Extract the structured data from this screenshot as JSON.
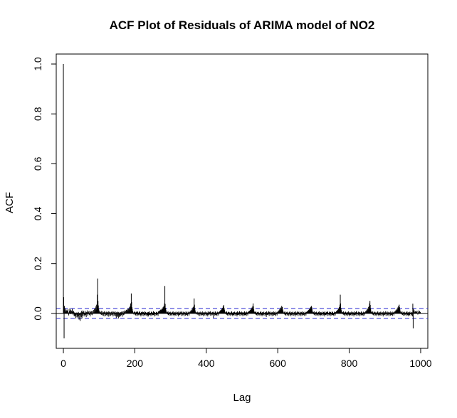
{
  "chart_data": {
    "type": "bar",
    "title": "ACF Plot of Residuals of ARIMA model of NO2",
    "xlabel": "Lag",
    "ylabel": "ACF",
    "xlim": [
      -20,
      1020
    ],
    "ylim": [
      -0.14,
      1.04
    ],
    "xticks": [
      0,
      200,
      400,
      600,
      800,
      1000
    ],
    "yticks": [
      0.0,
      0.2,
      0.4,
      0.6,
      0.8,
      1.0
    ],
    "xtick_labels": [
      "0",
      "200",
      "400",
      "600",
      "800",
      "1000"
    ],
    "ytick_labels": [
      "0.0",
      "0.2",
      "0.4",
      "0.6",
      "0.8",
      "1.0"
    ],
    "confidence_bound": 0.02,
    "max_lag": 1000,
    "series": [
      {
        "values": [
          1.0,
          0.065,
          -0.1,
          0.03,
          0.012,
          0.02,
          0.008,
          0.004,
          0.015,
          0.01,
          0.003,
          0.012,
          0.006,
          0.018,
          0.002,
          -0.008,
          0.005,
          0.01,
          0.02,
          0.004,
          0.015,
          -0.003,
          0.01,
          0.002,
          0.012,
          0.018,
          0.008,
          -0.005,
          0.006,
          0.01,
          -0.01,
          0.004,
          -0.012,
          0.002,
          -0.008,
          -0.02,
          0.004,
          -0.005,
          -0.015,
          0.003,
          -0.01,
          -0.018,
          0.006,
          -0.012,
          -0.025,
          -0.006,
          0.002,
          -0.03,
          -0.008,
          0.004,
          -0.015,
          0.01,
          -0.02,
          0.006,
          -0.01,
          0.012,
          -0.004,
          0.008,
          -0.012,
          0.003,
          -0.006,
          0.01,
          -0.008,
          0.004,
          -0.015,
          0.006,
          -0.003,
          0.012,
          -0.009,
          0.005,
          -0.004,
          0.008,
          0.002,
          -0.006,
          0.01,
          -0.012,
          0.004,
          0.007,
          -0.005,
          0.009,
          0.003,
          -0.007,
          0.011,
          0.006,
          0.002,
          0.014,
          0.004,
          0.018,
          0.006,
          0.02,
          0.012,
          0.028,
          0.015,
          0.035,
          0.03,
          0.075,
          0.14,
          0.05,
          0.032,
          0.02,
          0.012,
          0.008,
          0.004,
          -0.002,
          0.006,
          -0.004,
          0.01,
          -0.006,
          0.004,
          0.008,
          -0.008,
          0.003,
          -0.01,
          0.006,
          -0.003,
          0.009,
          -0.012,
          0.005,
          0.002,
          -0.009,
          0.007,
          -0.006,
          0.004,
          -0.011,
          0.006,
          -0.004,
          0.008,
          -0.013,
          0.003,
          0.007,
          -0.008,
          0.005,
          -0.01,
          0.002,
          0.006,
          -0.007,
          0.009,
          -0.005,
          0.004,
          -0.012,
          0.007,
          0.002,
          -0.009,
          0.006,
          -0.004,
          0.008,
          -0.011,
          0.003,
          -0.018,
          0.005,
          -0.01,
          0.007,
          -0.014,
          0.004,
          -0.02,
          0.006,
          -0.008,
          -0.015,
          0.003,
          -0.012,
          0.005,
          -0.009,
          0.007,
          -0.006,
          0.004,
          -0.013,
          0.008,
          0.002,
          -0.007,
          0.009,
          -0.005,
          0.006,
          0.012,
          0.004,
          0.01,
          0.002,
          0.014,
          0.008,
          0.016,
          0.005,
          0.012,
          0.02,
          0.009,
          0.018,
          0.012,
          0.025,
          0.015,
          0.03,
          0.04,
          0.028,
          0.08,
          0.045,
          0.025,
          0.018,
          0.01,
          0.006,
          0.002,
          -0.004,
          0.006,
          -0.002,
          0.008,
          -0.006,
          0.004,
          -0.009,
          0.007,
          -0.003,
          0.005,
          -0.01,
          0.008,
          -0.005,
          0.003,
          -0.008,
          0.006,
          -0.004,
          0.009,
          -0.007,
          0.002,
          -0.012,
          0.006,
          -0.005,
          0.004,
          -0.009,
          0.007,
          -0.003,
          0.005,
          -0.011,
          0.008,
          -0.006,
          0.003,
          -0.008,
          0.006,
          -0.004,
          0.002,
          -0.01,
          0.005,
          -0.007,
          0.004,
          -0.013,
          0.006,
          -0.009,
          0.003,
          -0.006,
          0.008,
          -0.005,
          0.002,
          -0.011,
          0.007,
          -0.004,
          0.005,
          -0.008,
          0.003,
          -0.006,
          0.009,
          -0.007,
          0.004,
          -0.012,
          0.006,
          -0.003,
          0.002,
          -0.009,
          0.005,
          -0.006,
          0.007,
          -0.004,
          0.003,
          -0.01,
          0.008,
          0.004,
          0.01,
          0.006,
          0.012,
          0.008,
          0.015,
          0.01,
          0.014,
          0.018,
          0.012,
          0.02,
          0.016,
          0.025,
          0.018,
          0.03,
          0.022,
          0.04,
          0.11,
          0.038,
          0.022,
          0.015,
          0.008,
          0.004,
          -0.002,
          0.006,
          -0.004,
          0.008,
          -0.006,
          0.003,
          -0.009,
          0.005,
          -0.003,
          0.007,
          -0.008,
          0.004,
          -0.005,
          0.002,
          -0.01,
          0.006,
          -0.004,
          0.008,
          -0.007,
          0.003,
          -0.011,
          0.005,
          -0.006,
          0.004,
          -0.008,
          0.007,
          -0.003,
          0.002,
          -0.009,
          0.006,
          -0.005,
          0.004,
          -0.012,
          0.008,
          -0.006,
          0.003,
          -0.007,
          0.005,
          -0.004,
          0.009,
          -0.01,
          0.006,
          -0.003,
          0.002,
          -0.008,
          0.007,
          -0.005,
          0.004,
          -0.011,
          0.006,
          -0.004,
          0.003,
          -0.009,
          0.008,
          -0.006,
          0.005,
          -0.007,
          0.002,
          -0.01,
          0.007,
          -0.003,
          0.004,
          -0.008,
          0.006,
          0.003,
          0.009,
          0.005,
          0.012,
          0.007,
          0.015,
          0.01,
          0.02,
          0.012,
          0.025,
          0.018,
          0.03,
          0.06,
          0.035,
          0.02,
          0.012,
          0.006,
          0.002,
          -0.004,
          0.005,
          -0.002,
          0.007,
          -0.005,
          0.003,
          -0.008,
          0.006,
          -0.003,
          0.004,
          -0.01,
          0.007,
          -0.004,
          0.002,
          -0.009,
          0.005,
          -0.006,
          0.008,
          -0.007,
          0.003,
          -0.011,
          0.006,
          -0.004,
          0.004,
          -0.008,
          0.007,
          -0.003,
          0.002,
          -0.01,
          0.005,
          -0.006,
          0.003,
          -0.012,
          0.008,
          -0.005,
          0.004,
          -0.007,
          0.006,
          -0.003,
          0.009,
          -0.009,
          0.005,
          -0.004,
          0.002,
          -0.008,
          0.006,
          -0.005,
          0.004,
          -0.018,
          0.007,
          -0.004,
          0.003,
          -0.009,
          0.008,
          -0.006,
          0.005,
          -0.007,
          0.002,
          -0.01,
          0.007,
          -0.003,
          0.004,
          -0.008,
          0.006,
          0.004,
          0.008,
          0.006,
          0.012,
          0.008,
          0.014,
          0.01,
          0.018,
          0.012,
          0.022,
          0.016,
          0.028,
          0.02,
          0.034,
          0.022,
          0.015,
          0.008,
          0.004,
          -0.002,
          0.006,
          -0.004,
          0.008,
          -0.006,
          0.003,
          -0.009,
          0.005,
          -0.003,
          0.007,
          -0.008,
          0.004,
          -0.005,
          0.002,
          -0.01,
          0.006,
          -0.004,
          0.008,
          -0.007,
          0.003,
          -0.011,
          0.005,
          -0.006,
          0.004,
          -0.008,
          0.007,
          -0.003,
          0.002,
          -0.009,
          0.006,
          -0.005,
          0.004,
          -0.012,
          0.008,
          -0.006,
          0.003,
          -0.007,
          0.005,
          -0.004,
          0.009,
          -0.01,
          0.006,
          -0.003,
          0.002,
          -0.008,
          0.007,
          -0.005,
          0.004,
          -0.011,
          0.006,
          -0.004,
          0.003,
          -0.009,
          0.008,
          -0.006,
          0.005,
          -0.007,
          0.002,
          -0.01,
          0.007,
          -0.003,
          0.004,
          -0.008,
          0.006,
          0.004,
          0.009,
          0.006,
          0.011,
          0.008,
          0.014,
          0.011,
          0.018,
          0.014,
          0.02,
          0.024,
          0.018,
          0.03,
          0.04,
          0.028,
          0.016,
          0.009,
          0.005,
          -0.002,
          0.006,
          -0.004,
          0.008,
          -0.006,
          0.003,
          -0.009,
          0.005,
          -0.003,
          0.007,
          -0.008,
          0.004,
          -0.005,
          0.002,
          -0.01,
          0.006,
          -0.004,
          0.008,
          -0.007,
          0.003,
          -0.011,
          0.005,
          -0.006,
          0.004,
          -0.008,
          0.007,
          -0.003,
          0.002,
          -0.009,
          0.006,
          -0.005,
          0.004,
          -0.014,
          0.008,
          -0.006,
          0.003,
          -0.007,
          0.005,
          -0.004,
          0.009,
          -0.01,
          0.006,
          -0.003,
          0.002,
          -0.008,
          0.007,
          -0.005,
          0.004,
          -0.011,
          0.006,
          -0.004,
          0.003,
          -0.009,
          0.008,
          -0.006,
          0.005,
          -0.007,
          0.002,
          -0.01,
          0.007,
          -0.003,
          0.004,
          -0.008,
          0.006,
          0.004,
          0.01,
          0.006,
          0.012,
          0.009,
          0.016,
          0.012,
          0.02,
          0.015,
          0.024,
          0.019,
          0.03,
          0.026,
          0.025,
          0.015,
          0.009,
          0.004,
          -0.002,
          0.006,
          -0.004,
          0.008,
          -0.006,
          0.003,
          -0.009,
          0.005,
          -0.003,
          0.007,
          -0.008,
          0.004,
          -0.005,
          0.002,
          -0.01,
          0.006,
          -0.004,
          0.008,
          -0.007,
          0.003,
          -0.011,
          0.005,
          -0.006,
          0.004,
          -0.008,
          0.007,
          -0.003,
          0.002,
          -0.009,
          0.006,
          -0.005,
          0.004,
          -0.012,
          0.008,
          -0.006,
          0.003,
          -0.007,
          0.005,
          -0.004,
          0.009,
          -0.01,
          0.006,
          -0.003,
          0.002,
          -0.008,
          0.007,
          -0.005,
          0.004,
          -0.011,
          0.006,
          -0.004,
          0.003,
          -0.009,
          0.008,
          -0.006,
          0.005,
          -0.007,
          0.002,
          -0.01,
          0.007,
          -0.003,
          0.004,
          -0.008,
          0.006,
          0.004,
          0.008,
          0.006,
          0.011,
          0.008,
          0.014,
          0.01,
          0.017,
          0.012,
          0.021,
          0.016,
          0.026,
          0.021,
          0.03,
          0.026,
          0.018,
          0.01,
          0.005,
          -0.002,
          0.006,
          -0.004,
          0.008,
          -0.006,
          0.003,
          -0.009,
          0.005,
          -0.003,
          0.007,
          -0.008,
          0.004,
          -0.005,
          0.002,
          -0.01,
          0.006,
          -0.004,
          0.008,
          -0.007,
          0.003,
          -0.011,
          0.005,
          -0.006,
          0.004,
          -0.008,
          0.007,
          -0.003,
          0.002,
          -0.009,
          0.006,
          -0.005,
          0.004,
          -0.012,
          0.008,
          -0.006,
          0.003,
          -0.007,
          0.005,
          -0.004,
          0.009,
          -0.01,
          0.006,
          -0.003,
          0.002,
          -0.008,
          0.007,
          -0.005,
          0.004,
          -0.011,
          0.006,
          -0.004,
          0.003,
          -0.009,
          0.008,
          -0.006,
          0.005,
          -0.007,
          0.002,
          -0.01,
          0.007,
          -0.003,
          0.004,
          -0.008,
          0.006,
          0.004,
          0.009,
          0.006,
          0.012,
          0.008,
          0.015,
          0.011,
          0.02,
          0.014,
          0.026,
          0.02,
          0.035,
          0.075,
          0.04,
          0.022,
          0.013,
          0.007,
          0.003,
          -0.002,
          0.006,
          -0.004,
          0.008,
          -0.006,
          0.003,
          -0.009,
          0.005,
          -0.003,
          0.007,
          -0.008,
          0.004,
          -0.005,
          0.002,
          -0.01,
          0.006,
          -0.004,
          0.008,
          -0.007,
          0.003,
          -0.011,
          0.005,
          -0.006,
          0.004,
          -0.008,
          0.007,
          -0.003,
          0.002,
          -0.009,
          0.006,
          -0.005,
          0.004,
          -0.012,
          0.008,
          -0.006,
          0.003,
          -0.007,
          0.005,
          -0.004,
          0.009,
          -0.01,
          0.006,
          -0.003,
          0.002,
          -0.008,
          0.007,
          -0.005,
          0.004,
          -0.011,
          0.006,
          -0.004,
          0.003,
          -0.009,
          0.008,
          -0.006,
          0.005,
          -0.007,
          0.002,
          -0.01,
          0.007,
          -0.003,
          0.004,
          -0.008,
          0.006,
          0.004,
          0.009,
          0.006,
          0.012,
          0.009,
          0.016,
          0.012,
          0.02,
          0.016,
          0.026,
          0.02,
          0.03,
          0.04,
          0.05,
          0.034,
          0.02,
          0.011,
          0.005,
          -0.002,
          0.006,
          -0.004,
          0.008,
          -0.006,
          0.003,
          -0.009,
          0.005,
          -0.003,
          0.007,
          -0.008,
          0.004,
          -0.005,
          0.002,
          -0.01,
          0.006,
          -0.004,
          0.008,
          -0.007,
          0.003,
          -0.011,
          0.005,
          -0.006,
          0.004,
          -0.008,
          0.007,
          -0.003,
          0.002,
          -0.009,
          0.006,
          -0.005,
          0.004,
          -0.012,
          0.008,
          -0.006,
          0.003,
          -0.007,
          0.005,
          -0.004,
          0.009,
          -0.01,
          0.006,
          -0.003,
          0.002,
          -0.008,
          0.007,
          -0.005,
          0.004,
          -0.011,
          0.006,
          -0.004,
          0.003,
          -0.009,
          0.008,
          -0.006,
          0.005,
          -0.007,
          0.002,
          -0.01,
          0.007,
          -0.003,
          0.004,
          -0.008,
          0.006,
          0.004,
          0.009,
          0.006,
          0.012,
          0.009,
          0.015,
          0.011,
          0.019,
          0.014,
          0.024,
          0.019,
          0.03,
          0.024,
          0.035,
          0.025,
          0.016,
          0.009,
          0.004,
          -0.002,
          0.006,
          -0.004,
          0.008,
          -0.006,
          0.003,
          -0.009,
          0.005,
          -0.003,
          0.007,
          -0.008,
          0.004,
          -0.005,
          0.002,
          -0.01,
          0.006,
          -0.004,
          0.008,
          -0.007,
          0.003,
          -0.011,
          0.005,
          -0.006,
          0.004,
          -0.008,
          0.007,
          -0.003,
          0.002,
          -0.009,
          0.006,
          -0.005,
          0.004,
          -0.012
        ]
      }
    ]
  }
}
